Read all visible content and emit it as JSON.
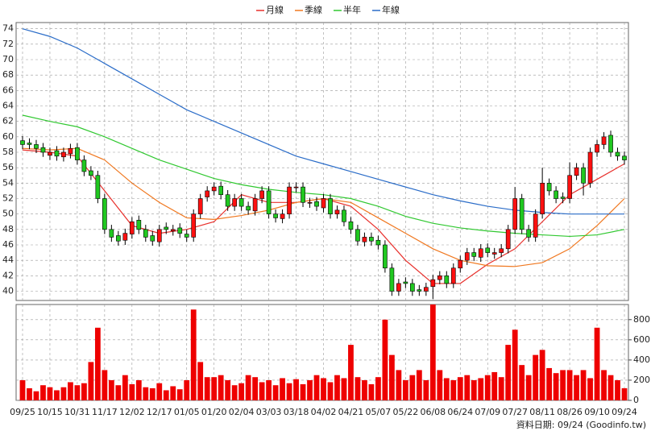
{
  "chart_data": {
    "type": "candlestick",
    "legend": [
      {
        "name": "月線",
        "color": "#e8302c"
      },
      {
        "name": "季線",
        "color": "#f07820"
      },
      {
        "name": "半年",
        "color": "#30c830"
      },
      {
        "name": "年線",
        "color": "#2a6cc8"
      }
    ],
    "categories": [
      "09/25",
      null,
      null,
      null,
      "10/15",
      null,
      null,
      null,
      "10/31",
      null,
      null,
      null,
      "11/17",
      null,
      null,
      null,
      "12/02",
      null,
      null,
      null,
      "12/17",
      null,
      null,
      null,
      "01/05",
      null,
      null,
      null,
      "01/20",
      null,
      null,
      null,
      "02/04",
      null,
      null,
      null,
      "03/03",
      null,
      null,
      null,
      "03/18",
      null,
      null,
      null,
      "04/02",
      null,
      null,
      null,
      "04/21",
      null,
      null,
      null,
      "05/07",
      null,
      null,
      null,
      "05/22",
      null,
      null,
      null,
      "06/08",
      null,
      null,
      null,
      "06/24",
      null,
      null,
      null,
      "07/09",
      null,
      null,
      null,
      "07/27",
      null,
      null,
      null,
      "08/11",
      null,
      null,
      null,
      "08/26",
      null,
      null,
      null,
      "09/10",
      null,
      null,
      null,
      "09/24"
    ],
    "open": [
      59.5,
      59.2,
      59,
      58.6,
      57.6,
      58.2,
      57.4,
      57.8,
      58.6,
      57,
      55.6,
      55,
      52,
      48,
      47.2,
      46.6,
      47.4,
      49.2,
      48,
      47.2,
      46.4,
      48.3,
      47.8,
      48.2,
      47.4,
      47,
      50,
      52.2,
      53,
      53.6,
      52.5,
      51,
      52,
      51,
      50.4,
      52,
      53,
      50,
      49.4,
      50,
      53.4,
      53.5,
      51.4,
      51.6,
      50.8,
      52,
      50,
      50.5,
      49,
      48,
      46.4,
      47,
      46.6,
      46,
      43,
      40,
      41.2,
      41,
      40.2,
      40,
      40.6,
      41.5,
      42,
      41,
      43,
      44,
      45,
      44.4,
      45.6,
      44.8,
      45,
      45.5,
      48,
      52,
      48,
      47,
      50,
      54,
      53,
      52.2,
      52,
      55,
      56,
      54,
      58,
      59,
      60.2,
      58,
      57.5
    ],
    "high": [
      60.1,
      59.8,
      59.6,
      59.2,
      58.6,
      58.8,
      58.6,
      59.1,
      59.2,
      57.6,
      56.2,
      55.6,
      52.6,
      48.6,
      47.8,
      48.1,
      49.6,
      49.8,
      48.6,
      47.8,
      48.6,
      48.9,
      48.6,
      48.8,
      48,
      50.6,
      52.6,
      53.6,
      54.1,
      54.2,
      53.1,
      52.6,
      52.6,
      51.6,
      52.6,
      53.6,
      53.6,
      50.6,
      50.6,
      54.1,
      54.1,
      54.1,
      52.1,
      52.2,
      52.6,
      52.6,
      51.1,
      51.1,
      49.6,
      48.6,
      47.6,
      47.6,
      47.2,
      46.6,
      43.6,
      41.6,
      41.8,
      41.6,
      40.8,
      41.1,
      42.1,
      42.6,
      42.6,
      43.6,
      44.6,
      45.6,
      45.6,
      46.1,
      46.2,
      45.6,
      46.1,
      48.6,
      53.5,
      52.6,
      48.6,
      50.6,
      56,
      54.6,
      53.6,
      52.8,
      56.7,
      56.6,
      56.6,
      58.6,
      59.6,
      60.6,
      60.8,
      58.6,
      58.1
    ],
    "low": [
      58.4,
      58.4,
      57.9,
      57.4,
      57,
      56.9,
      56.8,
      57.2,
      56.4,
      54.9,
      54.4,
      51.4,
      47.4,
      46.4,
      45.9,
      46,
      46.8,
      47.4,
      46.4,
      45.9,
      45.8,
      47.4,
      47.2,
      46.9,
      46.4,
      46.4,
      49.4,
      51.6,
      52.4,
      51.9,
      50.4,
      50.4,
      50.4,
      49.9,
      49.8,
      51.4,
      49.4,
      48.9,
      48.8,
      49.4,
      52.8,
      50.9,
      50.8,
      50.4,
      50.2,
      49.4,
      49.4,
      48.4,
      47.4,
      45.9,
      45.8,
      45.9,
      45.4,
      42.4,
      39.4,
      39.4,
      40.4,
      39.4,
      39.4,
      39.4,
      39,
      40.9,
      40.4,
      40.4,
      42.4,
      43.4,
      43.9,
      43.8,
      44.4,
      44.2,
      44.4,
      44.9,
      47.4,
      47.4,
      46.4,
      46.4,
      49.4,
      52.4,
      51.4,
      51.4,
      51.4,
      54.4,
      52.4,
      53.4,
      57.4,
      58.4,
      57.4,
      56.9,
      56.4
    ],
    "close": [
      59,
      59,
      58.5,
      58,
      58,
      57.5,
      58,
      58.5,
      57,
      55.5,
      55,
      52,
      48,
      47,
      46.5,
      47.5,
      49,
      48,
      47,
      46.5,
      48,
      48,
      48,
      47.5,
      47,
      50,
      52,
      53,
      53.5,
      52.5,
      51,
      52,
      51,
      50.5,
      52,
      53,
      50,
      49.5,
      50,
      53.5,
      53.5,
      51.5,
      51.5,
      51,
      52,
      50,
      50.5,
      49,
      48,
      46.5,
      47,
      46.5,
      46,
      43,
      40,
      41,
      41,
      40,
      40,
      40.5,
      41.5,
      42,
      41,
      43,
      44,
      45,
      44.5,
      45.5,
      45,
      45,
      45.5,
      48,
      52,
      48,
      47,
      50,
      54,
      53,
      52,
      52,
      55,
      56,
      54,
      58,
      59,
      60,
      58,
      57.5,
      57
    ],
    "up_color": "#ff1010",
    "down_color": "#20c820",
    "ylim": [
      38.8,
      74.8
    ],
    "yticks": [
      40,
      42,
      44,
      46,
      48,
      50,
      52,
      54,
      56,
      58,
      60,
      62,
      64,
      66,
      68,
      70,
      72,
      74
    ],
    "grid": true,
    "moving_averages": {
      "x": [
        0,
        4,
        8,
        12,
        16,
        20,
        24,
        28,
        32,
        36,
        40,
        44,
        48,
        52,
        56,
        60,
        64,
        68,
        72,
        76,
        80,
        84,
        88
      ],
      "series": [
        {
          "name": "月線",
          "color": "#e8302c",
          "values": [
            58.3,
            58,
            57.5,
            53,
            48.5,
            47.5,
            48,
            49,
            52.5,
            51.5,
            51.5,
            52,
            51,
            48,
            44,
            41,
            41,
            43.5,
            45.5,
            49,
            52.5,
            54.5,
            56.5
          ]
        },
        {
          "name": "季線",
          "color": "#f07820",
          "values": [
            58.5,
            58.3,
            58.5,
            57,
            54,
            51.5,
            49.5,
            49.3,
            49.8,
            50.5,
            51.5,
            52,
            51.5,
            49.5,
            47.5,
            45.5,
            44,
            43.3,
            43.2,
            43.7,
            45.5,
            48.5,
            52
          ]
        },
        {
          "name": "半年",
          "color": "#30c830",
          "values": [
            62.8,
            62,
            61.3,
            60,
            58.5,
            57,
            55.8,
            54.6,
            53.8,
            53.2,
            52.8,
            52.5,
            52,
            51,
            49.7,
            48.8,
            48.2,
            47.8,
            47.5,
            47.3,
            47.1,
            47.3,
            48
          ]
        },
        {
          "name": "年線",
          "color": "#2a6cc8",
          "values": [
            74,
            73,
            71.5,
            69.5,
            67.5,
            65.5,
            63.5,
            62,
            60.5,
            59,
            57.5,
            56.5,
            55.5,
            54.5,
            53.5,
            52.5,
            51.7,
            51,
            50.5,
            50.2,
            50,
            50,
            50
          ]
        }
      ]
    },
    "volume": {
      "color": "#ee0000",
      "ylim": [
        0,
        950
      ],
      "yticks": [
        0,
        200,
        400,
        600,
        800
      ],
      "values": [
        200,
        120,
        90,
        150,
        130,
        100,
        130,
        180,
        150,
        170,
        380,
        720,
        300,
        200,
        150,
        250,
        160,
        200,
        130,
        120,
        170,
        100,
        140,
        110,
        200,
        900,
        380,
        230,
        230,
        250,
        200,
        150,
        170,
        250,
        230,
        180,
        200,
        150,
        220,
        170,
        210,
        160,
        200,
        250,
        220,
        180,
        250,
        220,
        550,
        230,
        200,
        160,
        230,
        800,
        450,
        300,
        200,
        250,
        300,
        200,
        950,
        300,
        220,
        200,
        230,
        250,
        200,
        220,
        250,
        280,
        230,
        550,
        700,
        350,
        250,
        450,
        500,
        320,
        270,
        300,
        300,
        250,
        300,
        220,
        720,
        300,
        250,
        200,
        120
      ]
    },
    "source_note": "資料日期: 09/24 (Goodinfo.tw)"
  }
}
